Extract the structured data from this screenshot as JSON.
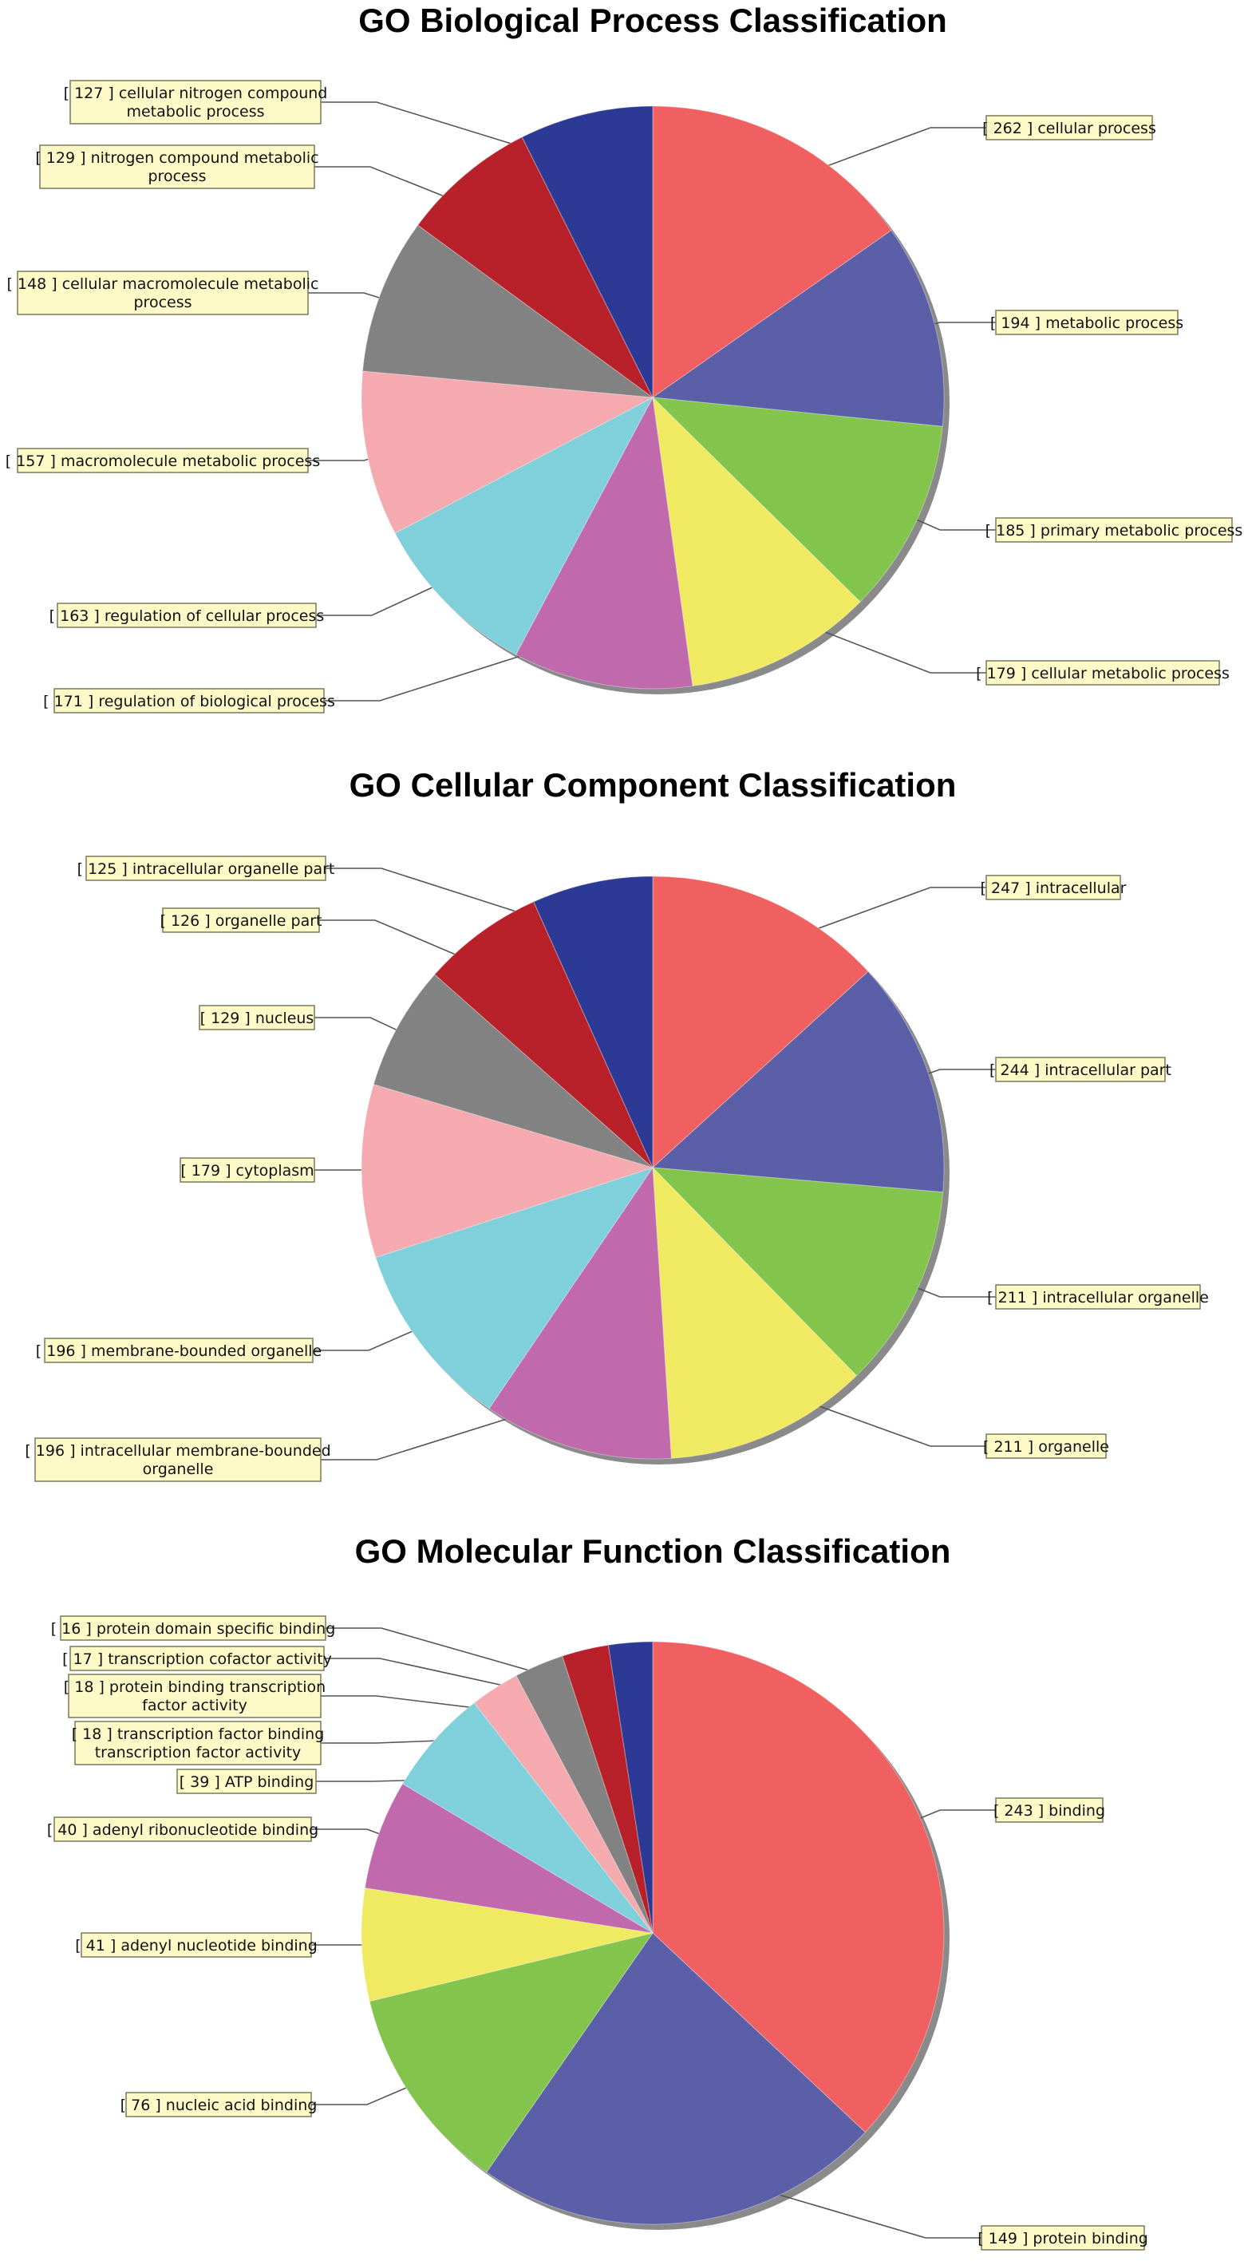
{
  "chart_data": [
    {
      "type": "pie",
      "title": "GO Biological Process Classification",
      "slices": [
        {
          "value": 262,
          "lines": [
            "[ 262 ] cellular process"
          ],
          "color": "#f06060"
        },
        {
          "value": 194,
          "lines": [
            "[ 194 ] metabolic process"
          ],
          "color": "#5b5fa8"
        },
        {
          "value": 185,
          "lines": [
            "[ 185 ] primary metabolic process"
          ],
          "color": "#82c44c"
        },
        {
          "value": 179,
          "lines": [
            "[ 179 ] cellular metabolic process"
          ],
          "color": "#efea62"
        },
        {
          "value": 171,
          "lines": [
            "[ 171 ] regulation of biological process"
          ],
          "color": "#c06aad"
        },
        {
          "value": 163,
          "lines": [
            "[ 163 ] regulation of cellular process"
          ],
          "color": "#80d0dc"
        },
        {
          "value": 157,
          "lines": [
            "[ 157 ] macromolecule metabolic process"
          ],
          "color": "#f4aaae"
        },
        {
          "value": 148,
          "lines": [
            "[ 148 ] cellular macromolecule metabolic",
            "process"
          ],
          "color": "#828282"
        },
        {
          "value": 129,
          "lines": [
            "[ 129 ] nitrogen compound metabolic",
            "process"
          ],
          "color": "#b8202a"
        },
        {
          "value": 127,
          "lines": [
            "[ 127 ] cellular nitrogen compound",
            "metabolic process"
          ],
          "color": "#2c3a96"
        }
      ]
    },
    {
      "type": "pie",
      "title": "GO Cellular Component Classification",
      "slices": [
        {
          "value": 247,
          "lines": [
            "[ 247 ] intracellular"
          ],
          "color": "#f06060"
        },
        {
          "value": 244,
          "lines": [
            "[ 244 ] intracellular part"
          ],
          "color": "#5b5fa8"
        },
        {
          "value": 211,
          "lines": [
            "[ 211 ] intracellular organelle"
          ],
          "color": "#82c44c"
        },
        {
          "value": 211,
          "lines": [
            "[ 211 ] organelle"
          ],
          "color": "#efea62"
        },
        {
          "value": 196,
          "lines": [
            "[ 196 ] intracellular membrane-bounded",
            "organelle"
          ],
          "color": "#c06aad"
        },
        {
          "value": 196,
          "lines": [
            "[ 196 ] membrane-bounded organelle"
          ],
          "color": "#80d0dc"
        },
        {
          "value": 179,
          "lines": [
            "[ 179 ] cytoplasm"
          ],
          "color": "#f4aaae"
        },
        {
          "value": 129,
          "lines": [
            "[ 129 ] nucleus"
          ],
          "color": "#828282"
        },
        {
          "value": 126,
          "lines": [
            "[ 126 ] organelle part"
          ],
          "color": "#b8202a"
        },
        {
          "value": 125,
          "lines": [
            "[ 125 ] intracellular organelle part"
          ],
          "color": "#2c3a96"
        }
      ]
    },
    {
      "type": "pie",
      "title": "GO Molecular Function Classification",
      "slices": [
        {
          "value": 243,
          "lines": [
            "[ 243 ] binding"
          ],
          "color": "#f06060"
        },
        {
          "value": 149,
          "lines": [
            "[ 149 ] protein binding"
          ],
          "color": "#5b5fa8"
        },
        {
          "value": 76,
          "lines": [
            "[ 76 ] nucleic acid binding"
          ],
          "color": "#82c44c"
        },
        {
          "value": 41,
          "lines": [
            "[ 41 ] adenyl nucleotide binding"
          ],
          "color": "#efea62"
        },
        {
          "value": 40,
          "lines": [
            "[ 40 ] adenyl ribonucleotide binding"
          ],
          "color": "#c06aad"
        },
        {
          "value": 39,
          "lines": [
            "[ 39 ] ATP binding"
          ],
          "color": "#80d0dc"
        },
        {
          "value": 18,
          "lines": [
            "[ 18 ] transcription factor binding",
            "transcription factor activity"
          ],
          "color": "#f4aaae"
        },
        {
          "value": 18,
          "lines": [
            "[ 18 ] protein binding transcription",
            "factor activity"
          ],
          "color": "#828282"
        },
        {
          "value": 17,
          "lines": [
            "[ 17 ] transcription cofactor activity"
          ],
          "color": "#b8202a"
        },
        {
          "value": 16,
          "lines": [
            "[ 16 ] protein domain specific binding"
          ],
          "color": "#2c3a96"
        }
      ]
    }
  ]
}
